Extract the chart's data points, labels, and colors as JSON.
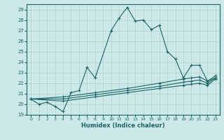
{
  "xlabel": "Humidex (Indice chaleur)",
  "bg_color": "#cce8e8",
  "grid_color": "#b0d0d0",
  "line_color": "#1a6666",
  "xlim": [
    -0.5,
    23.5
  ],
  "ylim": [
    19,
    29.5
  ],
  "yticks": [
    19,
    20,
    21,
    22,
    23,
    24,
    25,
    26,
    27,
    28,
    29
  ],
  "xticks": [
    0,
    1,
    2,
    3,
    4,
    5,
    6,
    7,
    8,
    9,
    10,
    11,
    12,
    13,
    14,
    15,
    16,
    17,
    18,
    19,
    20,
    21,
    22,
    23
  ],
  "series1": [
    [
      0,
      20.5
    ],
    [
      1,
      20.0
    ],
    [
      2,
      20.2
    ],
    [
      3,
      19.8
    ],
    [
      4,
      19.3
    ],
    [
      5,
      21.1
    ],
    [
      6,
      21.3
    ],
    [
      7,
      23.5
    ],
    [
      8,
      22.5
    ],
    [
      10,
      27.0
    ],
    [
      11,
      28.2
    ],
    [
      12,
      29.2
    ],
    [
      13,
      27.9
    ],
    [
      14,
      28.0
    ],
    [
      15,
      27.1
    ],
    [
      16,
      27.5
    ],
    [
      17,
      25.0
    ],
    [
      18,
      24.3
    ],
    [
      19,
      22.5
    ],
    [
      20,
      23.7
    ],
    [
      21,
      23.7
    ],
    [
      22,
      22.2
    ],
    [
      23,
      22.5
    ]
  ],
  "series2": [
    [
      0,
      20.5
    ],
    [
      4,
      20.7
    ],
    [
      8,
      21.1
    ],
    [
      12,
      21.5
    ],
    [
      16,
      22.0
    ],
    [
      19,
      22.4
    ],
    [
      20,
      22.5
    ],
    [
      21,
      22.6
    ],
    [
      22,
      22.2
    ],
    [
      23,
      22.7
    ]
  ],
  "series3": [
    [
      0,
      20.5
    ],
    [
      4,
      20.5
    ],
    [
      8,
      20.9
    ],
    [
      12,
      21.3
    ],
    [
      16,
      21.7
    ],
    [
      19,
      22.1
    ],
    [
      20,
      22.2
    ],
    [
      21,
      22.3
    ],
    [
      22,
      22.0
    ],
    [
      23,
      22.5
    ]
  ],
  "series4": [
    [
      0,
      20.5
    ],
    [
      4,
      20.3
    ],
    [
      8,
      20.7
    ],
    [
      12,
      21.1
    ],
    [
      16,
      21.5
    ],
    [
      19,
      21.8
    ],
    [
      20,
      21.9
    ],
    [
      21,
      22.0
    ],
    [
      22,
      21.8
    ],
    [
      23,
      22.4
    ]
  ]
}
